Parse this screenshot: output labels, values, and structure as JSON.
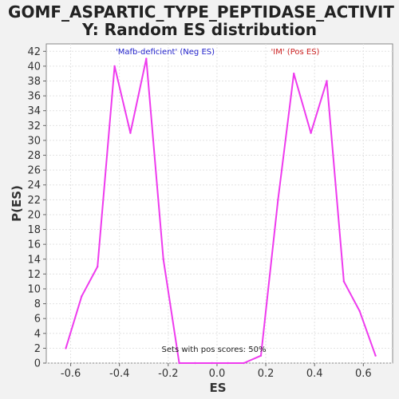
{
  "chart_data": {
    "type": "line",
    "title_line1": "GOMF_ASPARTIC_TYPE_PEPTIDASE_ACTIVIT",
    "title_line2": "Y: Random ES distribution",
    "xlabel": "ES",
    "ylabel": "P(ES)",
    "xlim": [
      -0.7,
      0.72
    ],
    "ylim": [
      0,
      43
    ],
    "x_ticks": [
      -0.6,
      -0.4,
      -0.2,
      0.0,
      0.2,
      0.4,
      0.6
    ],
    "x_tick_labels": [
      "-0.6",
      "-0.4",
      "-0.2",
      "0.0",
      "0.2",
      "0.4",
      "0.6"
    ],
    "y_ticks": [
      0,
      2,
      4,
      6,
      8,
      10,
      12,
      14,
      16,
      18,
      20,
      22,
      24,
      26,
      28,
      30,
      32,
      34,
      36,
      38,
      40,
      42
    ],
    "grid": true,
    "series": [
      {
        "color": "#ee3bee",
        "x": [
          -0.62,
          -0.555,
          -0.49,
          -0.42,
          -0.355,
          -0.29,
          -0.22,
          -0.155,
          -0.09,
          -0.02,
          0.045,
          0.11,
          0.18,
          0.25,
          0.315,
          0.385,
          0.45,
          0.52,
          0.585,
          0.65
        ],
        "y": [
          2,
          9,
          13,
          40,
          31,
          41,
          14,
          0,
          0,
          0,
          0,
          0,
          1,
          22,
          39,
          31,
          38,
          11,
          7,
          1
        ]
      }
    ],
    "annotations": {
      "neg_label": "'Mafb-deficient' (Neg ES)",
      "neg_color": "#2222cc",
      "pos_label": "'IM' (Pos ES)",
      "pos_color": "#cc2222",
      "footer": "Sets with pos scores: 50%"
    }
  }
}
